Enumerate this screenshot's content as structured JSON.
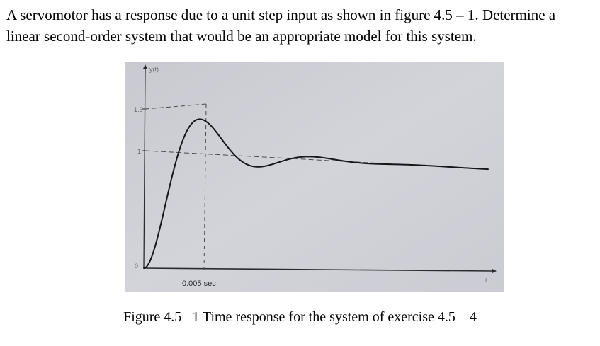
{
  "document": {
    "problem_lines": [
      "A servomotor has a response due to a unit step input as shown in figure 4.5 – 1. Determine a",
      "linear second-order system that would be an appropriate model for this system."
    ],
    "caption": "Figure 4.5 –1 Time response for the system of exercise 4.5 – 4"
  },
  "figure": {
    "y_axis_label": "y(t)",
    "x_axis_label": "t",
    "y_ticks": [
      "1.3",
      "1",
      "0"
    ],
    "peak_time_label": "0.005 sec",
    "peak_value": 1.3,
    "steady_state_value": 1,
    "peak_time_sec": 0.005,
    "colors": {
      "photo_background": "#cfcfd6",
      "curve": "#15151a",
      "guide_lines": "#4a4a50"
    }
  }
}
